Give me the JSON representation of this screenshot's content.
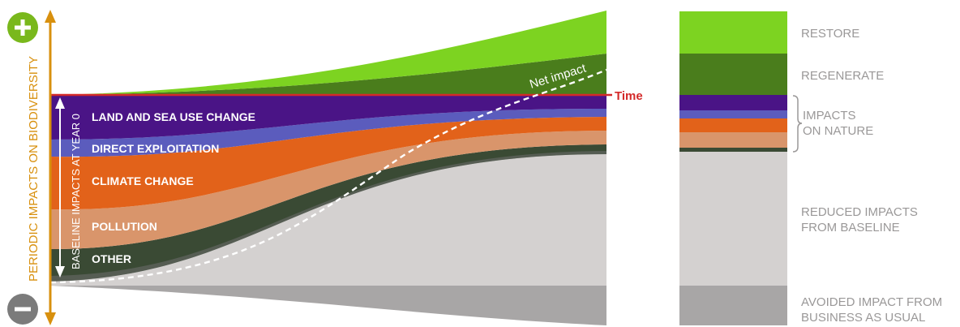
{
  "axis": {
    "y_label": "PERIODIC IMPACTS ON BIODIVERSITY",
    "plus_symbol": "+",
    "minus_symbol": "−",
    "baseline_label": "BASELINE IMPACTS AT YEAR 0",
    "time_label": "Time",
    "net_impact_label": "Net impact"
  },
  "drivers": [
    {
      "label": "LAND AND SEA USE CHANGE",
      "color": "#4a1486"
    },
    {
      "label": "DIRECT EXPLOITATION",
      "color": "#5b5cbd"
    },
    {
      "label": "CLIMATE CHANGE",
      "color": "#e2621a"
    },
    {
      "label": "POLLUTION",
      "color": "#d9956b"
    },
    {
      "label": "OTHER",
      "color": "#3a4a34"
    }
  ],
  "legend": [
    {
      "label_lines": [
        "RESTORE"
      ],
      "color": "#7dd321"
    },
    {
      "label_lines": [
        "REGENERATE"
      ],
      "color": "#4a7d1c"
    },
    {
      "label_lines": [
        "IMPACTS",
        "ON NATURE"
      ],
      "bracket": true
    },
    {
      "label_lines": [
        "REDUCED IMPACTS",
        "FROM BASELINE"
      ],
      "color": "#d4d1d0"
    },
    {
      "label_lines": [
        "AVOIDED IMPACT FROM",
        "BUSINESS AS USUAL"
      ],
      "color": "#a8a6a6"
    }
  ],
  "colors": {
    "axis": "#d8900e",
    "plus": "#79b81c",
    "minus": "#7b7b7b",
    "time_line": "#d42a2a",
    "restore": "#7dd321",
    "regenerate": "#4a7d1c",
    "reduced": "#d4d1d0",
    "avoided": "#a8a6a6",
    "legend_text": "#9a9898"
  }
}
